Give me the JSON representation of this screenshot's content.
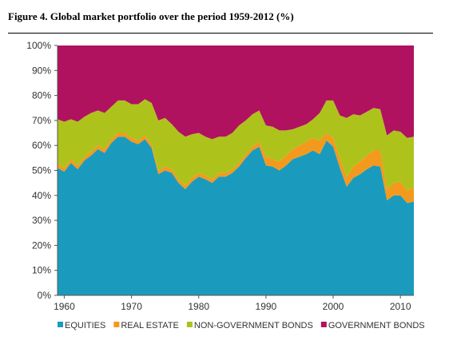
{
  "figure": {
    "title": "Figure 4. Global market portfolio over the period 1959-2012 (%)"
  },
  "chart_data": {
    "type": "area",
    "stacked": true,
    "xlim": [
      1959,
      2012
    ],
    "ylim": [
      0,
      100
    ],
    "x_ticks": [
      1960,
      1970,
      1980,
      1990,
      2000,
      2010
    ],
    "x_tick_labels": [
      "1960",
      "1970",
      "1980",
      "1990",
      "2000",
      "2010"
    ],
    "y_ticks": [
      0,
      10,
      20,
      30,
      40,
      50,
      60,
      70,
      80,
      90,
      100
    ],
    "y_tick_labels": [
      "0%",
      "10%",
      "20%",
      "30%",
      "40%",
      "50%",
      "60%",
      "70%",
      "80%",
      "90%",
      "100%"
    ],
    "grid": false,
    "legend_position": "bottom",
    "x": [
      1959,
      1960,
      1961,
      1962,
      1963,
      1964,
      1965,
      1966,
      1967,
      1968,
      1969,
      1970,
      1971,
      1972,
      1973,
      1974,
      1975,
      1976,
      1977,
      1978,
      1979,
      1980,
      1981,
      1982,
      1983,
      1984,
      1985,
      1986,
      1987,
      1988,
      1989,
      1990,
      1991,
      1992,
      1993,
      1994,
      1995,
      1996,
      1997,
      1998,
      1999,
      2000,
      2001,
      2002,
      2003,
      2004,
      2005,
      2006,
      2007,
      2008,
      2009,
      2010,
      2011,
      2012
    ],
    "series": [
      {
        "name": "EQUITIES",
        "color": "#1a9bbd",
        "values": [
          51,
          49.5,
          53,
          50.5,
          54,
          56,
          58.5,
          57,
          61,
          63.5,
          63.5,
          61.5,
          60.5,
          62.5,
          59,
          48.5,
          50,
          49,
          45,
          42.5,
          45.5,
          47.5,
          46.5,
          45,
          47.5,
          47.5,
          49,
          51.5,
          55,
          58,
          59.5,
          52,
          51.5,
          50,
          52,
          54.5,
          55.5,
          56.5,
          58,
          56.5,
          62,
          59.5,
          51,
          43.5,
          47,
          48.5,
          50.5,
          52,
          51.5,
          38,
          40,
          40,
          37,
          37.5
        ]
      },
      {
        "name": "REAL ESTATE",
        "color": "#f39a1e",
        "values": [
          1.5,
          1.5,
          1.5,
          1.5,
          1.5,
          1.5,
          1.5,
          1.5,
          1.5,
          1.5,
          1.5,
          1.5,
          1.5,
          1.5,
          1.5,
          1.5,
          1.5,
          1.5,
          1.5,
          1.5,
          1.5,
          1.5,
          1.5,
          1.5,
          1.5,
          1.5,
          1.5,
          1.5,
          1.5,
          1.5,
          2,
          3.5,
          3,
          3.5,
          4,
          4,
          4.5,
          5,
          5,
          5.5,
          3,
          3.5,
          4,
          4,
          4.5,
          5,
          5.5,
          6,
          6.5,
          4.5,
          5,
          5.5,
          5,
          5.5
        ]
      },
      {
        "name": "NON-GOVERNMENT BONDS",
        "color": "#aec21c",
        "values": [
          18,
          18.5,
          16,
          17.5,
          16,
          15.5,
          14,
          14.5,
          13,
          13,
          13,
          13.5,
          14.5,
          14.5,
          16.5,
          20,
          19.5,
          18,
          19,
          19.5,
          17.5,
          16,
          15.5,
          16,
          14.5,
          14.5,
          14.5,
          15,
          13.5,
          13,
          12.5,
          12.5,
          13,
          12.5,
          10,
          8,
          7.5,
          7,
          7.5,
          11,
          13,
          15,
          17,
          23.5,
          21,
          18.5,
          17.5,
          17,
          16.5,
          21.5,
          21,
          20,
          21,
          20.5
        ]
      },
      {
        "name": "GOVERNMENT BONDS",
        "color": "#b0125f",
        "values": [
          29.5,
          30.5,
          29.5,
          30.5,
          28.5,
          27,
          26,
          27,
          24.5,
          22,
          22,
          23.5,
          23.5,
          21.5,
          23,
          30,
          29,
          31.5,
          34.5,
          36.5,
          35.5,
          35,
          36.5,
          37.5,
          36.5,
          36.5,
          35,
          32,
          30,
          27.5,
          26,
          32,
          32.5,
          34,
          34,
          33.5,
          32.5,
          31.5,
          29.5,
          27,
          22,
          22,
          28,
          29,
          27.5,
          28,
          26.5,
          25,
          25.5,
          36,
          34,
          34.5,
          37,
          36.5
        ]
      }
    ]
  }
}
